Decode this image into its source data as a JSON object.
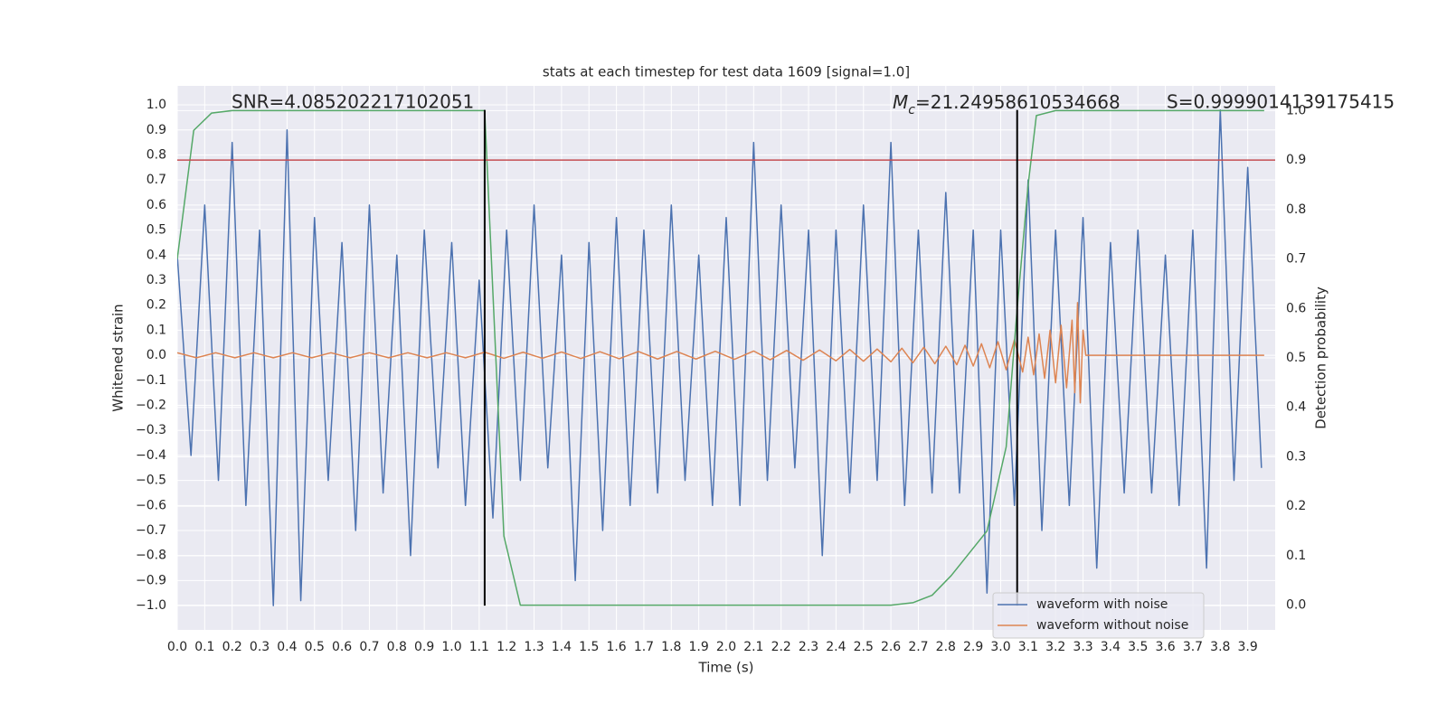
{
  "chart_data": {
    "type": "line",
    "title": "stats at each timestep for test data 1609 [signal=1.0]",
    "xlabel": "Time (s)",
    "ylabel": "Whitened strain",
    "y2label": "Detection probability",
    "grid": true,
    "legend": "lower right",
    "annotations": {
      "snr": "SNR=4.085202217102051",
      "mc": {
        "symbol": "M",
        "subscript": "c",
        "text": "=21.24958610534668"
      },
      "s": "S=0.9999014139175415"
    },
    "xlim": [
      0,
      4.0
    ],
    "ylim": [
      -1.097,
      1.076
    ],
    "y2lim": [
      -0.05,
      1.05
    ],
    "xticks": [
      {
        "value": 0,
        "label": "0.0"
      },
      {
        "value": 0.1,
        "label": "0.1"
      },
      {
        "value": 0.2,
        "label": "0.2"
      },
      {
        "value": 0.3,
        "label": "0.3"
      },
      {
        "value": 0.4,
        "label": "0.4"
      },
      {
        "value": 0.5,
        "label": "0.5"
      },
      {
        "value": 0.6,
        "label": "0.6"
      },
      {
        "value": 0.7,
        "label": "0.7"
      },
      {
        "value": 0.8,
        "label": "0.8"
      },
      {
        "value": 0.9,
        "label": "0.9"
      },
      {
        "value": 1,
        "label": "1.0"
      },
      {
        "value": 1.1,
        "label": "1.1"
      },
      {
        "value": 1.2,
        "label": "1.2"
      },
      {
        "value": 1.3,
        "label": "1.3"
      },
      {
        "value": 1.4,
        "label": "1.4"
      },
      {
        "value": 1.5,
        "label": "1.5"
      },
      {
        "value": 1.6,
        "label": "1.6"
      },
      {
        "value": 1.7,
        "label": "1.7"
      },
      {
        "value": 1.8,
        "label": "1.8"
      },
      {
        "value": 1.9,
        "label": "1.9"
      },
      {
        "value": 2,
        "label": "2.0"
      },
      {
        "value": 2.1,
        "label": "2.1"
      },
      {
        "value": 2.2,
        "label": "2.2"
      },
      {
        "value": 2.3,
        "label": "2.3"
      },
      {
        "value": 2.4,
        "label": "2.4"
      },
      {
        "value": 2.5,
        "label": "2.5"
      },
      {
        "value": 2.6,
        "label": "2.6"
      },
      {
        "value": 2.7,
        "label": "2.7"
      },
      {
        "value": 2.8,
        "label": "2.8"
      },
      {
        "value": 2.9,
        "label": "2.9"
      },
      {
        "value": 3,
        "label": "3.0"
      },
      {
        "value": 3.1,
        "label": "3.1"
      },
      {
        "value": 3.2,
        "label": "3.2"
      },
      {
        "value": 3.3,
        "label": "3.3"
      },
      {
        "value": 3.4,
        "label": "3.4"
      },
      {
        "value": 3.5,
        "label": "3.5"
      },
      {
        "value": 3.6,
        "label": "3.6"
      },
      {
        "value": 3.7,
        "label": "3.7"
      },
      {
        "value": 3.8,
        "label": "3.8"
      },
      {
        "value": 3.9,
        "label": "3.9"
      }
    ],
    "yticks": [
      {
        "value": -1,
        "label": "−1.0"
      },
      {
        "value": -0.9,
        "label": "−0.9"
      },
      {
        "value": -0.8,
        "label": "−0.8"
      },
      {
        "value": -0.7,
        "label": "−0.7"
      },
      {
        "value": -0.6,
        "label": "−0.6"
      },
      {
        "value": -0.5,
        "label": "−0.5"
      },
      {
        "value": -0.4,
        "label": "−0.4"
      },
      {
        "value": -0.3,
        "label": "−0.3"
      },
      {
        "value": -0.2,
        "label": "−0.2"
      },
      {
        "value": -0.1,
        "label": "−0.1"
      },
      {
        "value": 0,
        "label": "0.0"
      },
      {
        "value": 0.1,
        "label": "0.1"
      },
      {
        "value": 0.2,
        "label": "0.2"
      },
      {
        "value": 0.3,
        "label": "0.3"
      },
      {
        "value": 0.4,
        "label": "0.4"
      },
      {
        "value": 0.5,
        "label": "0.5"
      },
      {
        "value": 0.6,
        "label": "0.6"
      },
      {
        "value": 0.7,
        "label": "0.7"
      },
      {
        "value": 0.8,
        "label": "0.8"
      },
      {
        "value": 0.9,
        "label": "0.9"
      },
      {
        "value": 1,
        "label": "1.0"
      }
    ],
    "y2ticks": [
      {
        "value": 0,
        "label": "0.0"
      },
      {
        "value": 0.1,
        "label": "0.1"
      },
      {
        "value": 0.2,
        "label": "0.2"
      },
      {
        "value": 0.3,
        "label": "0.3"
      },
      {
        "value": 0.4,
        "label": "0.4"
      },
      {
        "value": 0.5,
        "label": "0.5"
      },
      {
        "value": 0.6,
        "label": "0.6"
      },
      {
        "value": 0.7,
        "label": "0.7"
      },
      {
        "value": 0.8,
        "label": "0.8"
      },
      {
        "value": 0.9,
        "label": "0.9"
      },
      {
        "value": 1,
        "label": "1.0"
      }
    ],
    "series": [
      {
        "name": "waveform with noise",
        "color": "#4c72b0",
        "x": [
          0,
          0.05,
          0.1,
          0.15,
          0.2,
          0.25,
          0.3,
          0.35,
          0.4,
          0.45,
          0.5,
          0.55,
          0.6,
          0.65,
          0.7,
          0.75,
          0.8,
          0.85,
          0.9,
          0.95,
          1,
          1.05,
          1.1,
          1.15,
          1.2,
          1.25,
          1.3,
          1.35,
          1.4,
          1.45,
          1.5,
          1.55,
          1.6,
          1.65,
          1.7,
          1.75,
          1.8,
          1.85,
          1.9,
          1.95,
          2,
          2.05,
          2.1,
          2.15,
          2.2,
          2.25,
          2.3,
          2.35,
          2.4,
          2.45,
          2.5,
          2.55,
          2.6,
          2.65,
          2.7,
          2.75,
          2.8,
          2.85,
          2.9,
          2.95,
          3,
          3.05,
          3.1,
          3.15,
          3.2,
          3.25,
          3.3,
          3.35,
          3.4,
          3.45,
          3.5,
          3.55,
          3.6,
          3.65,
          3.7,
          3.75,
          3.8,
          3.85,
          3.9,
          3.95
        ],
        "values": [
          0.4,
          -0.4,
          0.6,
          -0.5,
          0.85,
          -0.6,
          0.5,
          -1.0,
          0.9,
          -0.98,
          0.55,
          -0.5,
          0.45,
          -0.7,
          0.6,
          -0.55,
          0.4,
          -0.8,
          0.5,
          -0.45,
          0.45,
          -0.6,
          0.3,
          -0.65,
          0.5,
          -0.5,
          0.6,
          -0.45,
          0.4,
          -0.9,
          0.45,
          -0.7,
          0.55,
          -0.6,
          0.5,
          -0.55,
          0.6,
          -0.5,
          0.4,
          -0.6,
          0.55,
          -0.6,
          0.85,
          -0.5,
          0.6,
          -0.45,
          0.5,
          -0.8,
          0.5,
          -0.55,
          0.6,
          -0.5,
          0.85,
          -0.6,
          0.5,
          -0.55,
          0.65,
          -0.55,
          0.5,
          -0.95,
          0.5,
          -0.6,
          0.7,
          -0.7,
          0.5,
          -0.6,
          0.55,
          -0.85,
          0.45,
          -0.55,
          0.5,
          -0.55,
          0.4,
          -0.6,
          0.5,
          -0.85,
          0.98,
          -0.5,
          0.75,
          -0.45
        ]
      },
      {
        "name": "waveform without noise",
        "color": "#dd8452",
        "x": [
          0,
          0.07,
          0.14,
          0.21,
          0.28,
          0.35,
          0.42,
          0.49,
          0.56,
          0.63,
          0.7,
          0.77,
          0.84,
          0.91,
          0.98,
          1.05,
          1.12,
          1.19,
          1.26,
          1.33,
          1.4,
          1.47,
          1.54,
          1.61,
          1.68,
          1.75,
          1.82,
          1.89,
          1.96,
          2.03,
          2.1,
          2.16,
          2.22,
          2.28,
          2.34,
          2.4,
          2.45,
          2.5,
          2.55,
          2.6,
          2.64,
          2.68,
          2.72,
          2.76,
          2.8,
          2.84,
          2.87,
          2.9,
          2.93,
          2.96,
          2.99,
          3.02,
          3.05,
          3.08,
          3.1,
          3.12,
          3.14,
          3.16,
          3.18,
          3.2,
          3.22,
          3.24,
          3.26,
          3.27,
          3.28,
          3.29,
          3.3,
          3.31,
          3.96
        ],
        "values": [
          0.01,
          -0.01,
          0.01,
          -0.01,
          0.01,
          -0.01,
          0.01,
          -0.01,
          0.01,
          -0.01,
          0.01,
          -0.01,
          0.01,
          -0.01,
          0.01,
          -0.01,
          0.012,
          -0.012,
          0.012,
          -0.012,
          0.013,
          -0.013,
          0.014,
          -0.014,
          0.015,
          -0.015,
          0.015,
          -0.015,
          0.016,
          -0.016,
          0.017,
          -0.018,
          0.019,
          -0.02,
          0.021,
          -0.022,
          0.023,
          -0.024,
          0.025,
          -0.026,
          0.028,
          -0.03,
          0.032,
          -0.034,
          0.036,
          -0.038,
          0.04,
          -0.043,
          0.046,
          -0.05,
          0.054,
          -0.058,
          0.062,
          -0.067,
          0.072,
          -0.078,
          0.085,
          -0.092,
          0.1,
          -0.11,
          0.12,
          -0.13,
          0.14,
          -0.15,
          0.21,
          -0.19,
          0.1,
          0.0,
          0.0
        ]
      }
    ],
    "probability": {
      "color": "#55a868",
      "axis": "y2",
      "x": [
        0,
        0.06,
        0.125,
        0.2,
        1.12,
        1.19,
        1.25,
        1.3,
        2.6,
        2.68,
        2.75,
        2.82,
        2.95,
        3.02,
        3.06,
        3.1,
        3.13,
        3.2,
        3.96
      ],
      "values": [
        0.7,
        0.96,
        0.995,
        1.0,
        1.0,
        0.14,
        0.0,
        0.0,
        0.0,
        0.005,
        0.02,
        0.06,
        0.15,
        0.32,
        0.6,
        0.85,
        0.99,
        1.0,
        1.0
      ]
    },
    "threshold": {
      "value": 0.9,
      "axis": "y2",
      "color": "#c44e52"
    },
    "markers": {
      "x": [
        1.12,
        3.06
      ],
      "y": [
        -1.0,
        0.98
      ],
      "color": "#000000"
    }
  }
}
